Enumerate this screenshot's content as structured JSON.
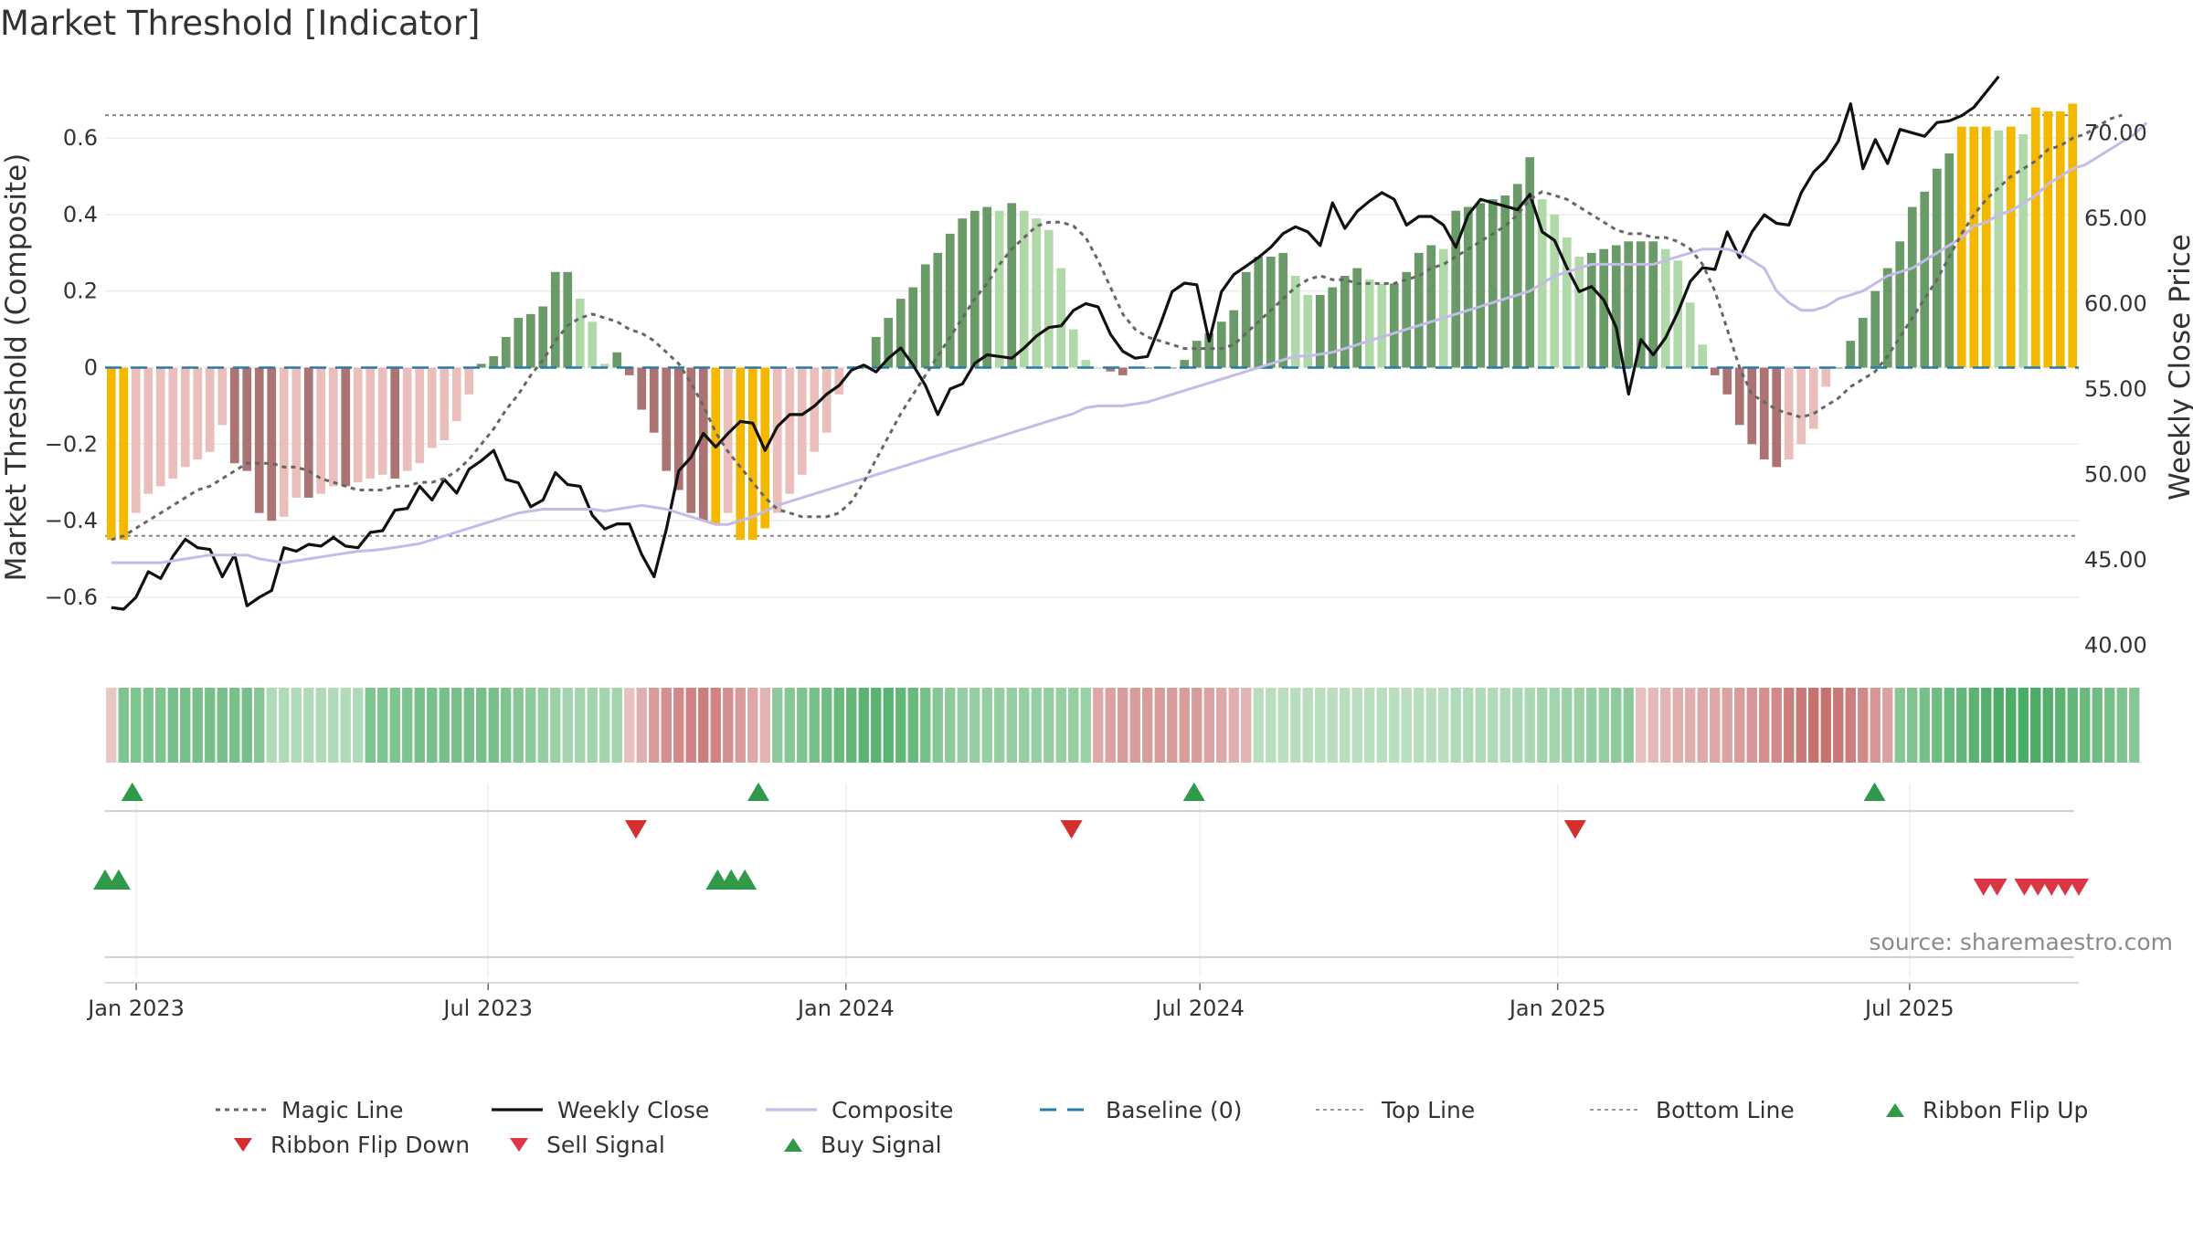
{
  "chart_data": {
    "type": "bar",
    "title": "Market Threshold [Indicator]",
    "ylabel_left": "Market Threshold (Composite)",
    "ylabel_right": "Weekly Close Price",
    "source": "source: sharemaestro.com",
    "x_ticks": [
      "Jan 2023",
      "Jul 2023",
      "Jan 2024",
      "Jul 2024",
      "Jan 2025",
      "Jul 2025"
    ],
    "x_range": [
      "2022-12-16",
      "2025-09-26"
    ],
    "y_left_ticks": [
      "−0.6",
      "−0.4",
      "−0.2",
      "0",
      "0.2",
      "0.4",
      "0.6"
    ],
    "y_left_range": [
      -0.77,
      0.77
    ],
    "y_right_ticks": [
      "40.00",
      "45.00",
      "50.00",
      "55.00",
      "60.00",
      "65.00",
      "70.00"
    ],
    "y_right_range": [
      39.0,
      73.5
    ],
    "top_line": 0.66,
    "bottom_line": -0.44,
    "baseline": 0,
    "histogram": [
      -0.45,
      -0.45,
      -0.38,
      -0.33,
      -0.31,
      -0.29,
      -0.26,
      -0.24,
      -0.22,
      -0.15,
      -0.25,
      -0.27,
      -0.38,
      -0.4,
      -0.39,
      -0.34,
      -0.34,
      -0.33,
      -0.31,
      -0.31,
      -0.3,
      -0.29,
      -0.28,
      -0.29,
      -0.27,
      -0.25,
      -0.21,
      -0.19,
      -0.14,
      -0.07,
      0.01,
      0.03,
      0.08,
      0.13,
      0.14,
      0.16,
      0.25,
      0.25,
      0.18,
      0.12,
      0.01,
      0.04,
      -0.02,
      -0.11,
      -0.17,
      -0.27,
      -0.32,
      -0.38,
      -0.4,
      -0.41,
      -0.38,
      -0.45,
      -0.45,
      -0.42,
      -0.38,
      -0.33,
      -0.28,
      -0.22,
      -0.17,
      -0.07,
      0.0,
      0.0,
      0.08,
      0.13,
      0.18,
      0.21,
      0.27,
      0.3,
      0.35,
      0.39,
      0.41,
      0.42,
      0.41,
      0.43,
      0.41,
      0.39,
      0.36,
      0.26,
      0.1,
      0.02,
      0.0,
      -0.01,
      -0.02,
      0.0,
      0.0,
      0.0,
      0.0,
      0.02,
      0.07,
      0.09,
      0.12,
      0.15,
      0.25,
      0.29,
      0.29,
      0.3,
      0.24,
      0.19,
      0.19,
      0.21,
      0.24,
      0.26,
      0.23,
      0.22,
      0.22,
      0.25,
      0.3,
      0.32,
      0.31,
      0.41,
      0.42,
      0.43,
      0.44,
      0.45,
      0.48,
      0.55,
      0.44,
      0.4,
      0.34,
      0.29,
      0.3,
      0.31,
      0.32,
      0.33,
      0.33,
      0.33,
      0.31,
      0.28,
      0.17,
      0.06,
      -0.02,
      -0.07,
      -0.15,
      -0.2,
      -0.24,
      -0.26,
      -0.24,
      -0.2,
      -0.16,
      -0.05,
      0.0,
      0.07,
      0.13,
      0.2,
      0.26,
      0.33,
      0.42,
      0.46,
      0.52,
      0.56,
      0.63,
      0.63,
      0.63,
      0.62,
      0.63,
      0.61,
      0.68,
      0.67,
      0.67,
      0.69
    ],
    "histogram_color_levels": {
      "gold": "#f5b800",
      "dark_green": "#6a9a68",
      "light_green": "#b0d8a8",
      "dark_red": "#ab7472",
      "light_red": "#eabfbb"
    },
    "series": [
      {
        "name": "Weekly Close",
        "color": "#111111",
        "values": [
          42.2,
          42.1,
          42.8,
          44.3,
          43.9,
          45.2,
          46.2,
          45.7,
          45.6,
          44.0,
          45.3,
          42.3,
          42.8,
          43.2,
          45.7,
          45.5,
          45.9,
          45.8,
          46.3,
          45.8,
          45.7,
          46.6,
          46.7,
          47.9,
          48.0,
          49.3,
          48.5,
          49.7,
          48.9,
          50.3,
          50.8,
          51.4,
          49.7,
          49.5,
          48.1,
          48.5,
          50.1,
          49.4,
          49.3,
          47.6,
          46.8,
          47.1,
          47.1,
          45.3,
          44.0,
          46.8,
          50.2,
          51.0,
          52.4,
          51.6,
          52.4,
          53.1,
          53.0,
          51.4,
          52.8,
          53.5,
          53.5,
          54.0,
          54.7,
          55.2,
          56.1,
          56.4,
          56.0,
          56.8,
          57.4,
          56.4,
          55.2,
          53.5,
          55.0,
          55.3,
          56.5,
          57.0,
          56.9,
          56.8,
          57.4,
          58.1,
          58.6,
          58.7,
          59.6,
          60.0,
          59.8,
          58.2,
          57.2,
          56.8,
          56.9,
          58.7,
          60.7,
          61.2,
          61.1,
          57.8,
          60.7,
          61.7,
          62.2,
          62.7,
          63.3,
          64.1,
          64.5,
          64.2,
          63.4,
          65.9,
          64.4,
          65.4,
          66.0,
          66.5,
          66.1,
          64.6,
          65.1,
          65.1,
          64.6,
          63.3,
          65.2,
          66.1,
          65.9,
          65.7,
          65.5,
          66.4,
          64.2,
          63.7,
          62.1,
          60.7,
          61.0,
          60.2,
          58.6,
          54.7,
          57.9,
          57.0,
          58.0,
          59.5,
          61.3,
          62.1,
          62.0,
          64.2,
          62.7,
          64.2,
          65.2,
          64.7,
          64.6,
          66.5,
          67.7,
          68.4,
          69.5,
          71.7,
          67.9,
          69.6,
          68.2,
          70.2,
          70.0,
          69.8,
          70.6,
          70.7,
          71.0,
          71.5,
          72.4,
          73.3
        ]
      },
      {
        "name": "Composite",
        "color": "#c4bbe8",
        "values": [
          -0.51,
          -0.51,
          -0.51,
          -0.51,
          -0.51,
          -0.505,
          -0.5,
          -0.495,
          -0.49,
          -0.49,
          -0.49,
          -0.49,
          -0.5,
          -0.505,
          -0.51,
          -0.505,
          -0.5,
          -0.495,
          -0.49,
          -0.485,
          -0.48,
          -0.478,
          -0.475,
          -0.47,
          -0.465,
          -0.46,
          -0.45,
          -0.44,
          -0.43,
          -0.42,
          -0.41,
          -0.4,
          -0.39,
          -0.38,
          -0.375,
          -0.37,
          -0.37,
          -0.37,
          -0.37,
          -0.37,
          -0.375,
          -0.37,
          -0.365,
          -0.36,
          -0.365,
          -0.37,
          -0.38,
          -0.39,
          -0.4,
          -0.41,
          -0.41,
          -0.4,
          -0.39,
          -0.375,
          -0.36,
          -0.35,
          -0.34,
          -0.33,
          -0.32,
          -0.31,
          -0.3,
          -0.29,
          -0.28,
          -0.27,
          -0.26,
          -0.25,
          -0.24,
          -0.23,
          -0.22,
          -0.21,
          -0.2,
          -0.19,
          -0.18,
          -0.17,
          -0.16,
          -0.15,
          -0.14,
          -0.13,
          -0.12,
          -0.105,
          -0.1,
          -0.1,
          -0.1,
          -0.095,
          -0.09,
          -0.08,
          -0.07,
          -0.06,
          -0.05,
          -0.04,
          -0.03,
          -0.02,
          -0.01,
          0.0,
          0.01,
          0.02,
          0.03,
          0.03,
          0.035,
          0.04,
          0.05,
          0.06,
          0.07,
          0.08,
          0.09,
          0.1,
          0.11,
          0.12,
          0.13,
          0.14,
          0.15,
          0.16,
          0.17,
          0.18,
          0.19,
          0.2,
          0.22,
          0.24,
          0.25,
          0.26,
          0.27,
          0.27,
          0.27,
          0.27,
          0.27,
          0.27,
          0.28,
          0.29,
          0.3,
          0.31,
          0.31,
          0.31,
          0.3,
          0.28,
          0.26,
          0.2,
          0.17,
          0.15,
          0.15,
          0.16,
          0.18,
          0.19,
          0.2,
          0.22,
          0.24,
          0.25,
          0.26,
          0.28,
          0.3,
          0.32,
          0.34,
          0.37,
          0.38,
          0.4,
          0.41,
          0.43,
          0.45,
          0.48,
          0.5,
          0.52,
          0.53,
          0.55,
          0.57,
          0.59,
          0.61,
          0.64
        ]
      },
      {
        "name": "Magic Line",
        "color": "#666666",
        "values": [
          -0.45,
          -0.44,
          -0.42,
          -0.4,
          -0.38,
          -0.36,
          -0.34,
          -0.32,
          -0.31,
          -0.29,
          -0.27,
          -0.25,
          -0.25,
          -0.25,
          -0.26,
          -0.26,
          -0.27,
          -0.29,
          -0.3,
          -0.31,
          -0.32,
          -0.32,
          -0.32,
          -0.31,
          -0.31,
          -0.3,
          -0.3,
          -0.29,
          -0.27,
          -0.24,
          -0.2,
          -0.16,
          -0.11,
          -0.07,
          -0.02,
          0.02,
          0.07,
          0.11,
          0.13,
          0.14,
          0.13,
          0.12,
          0.1,
          0.09,
          0.07,
          0.04,
          0.01,
          -0.04,
          -0.1,
          -0.17,
          -0.22,
          -0.26,
          -0.3,
          -0.34,
          -0.37,
          -0.38,
          -0.39,
          -0.39,
          -0.39,
          -0.38,
          -0.35,
          -0.3,
          -0.24,
          -0.18,
          -0.12,
          -0.07,
          -0.02,
          0.03,
          0.08,
          0.13,
          0.18,
          0.22,
          0.27,
          0.31,
          0.34,
          0.37,
          0.38,
          0.38,
          0.37,
          0.34,
          0.28,
          0.21,
          0.14,
          0.1,
          0.08,
          0.07,
          0.06,
          0.05,
          0.05,
          0.05,
          0.05,
          0.06,
          0.09,
          0.12,
          0.15,
          0.18,
          0.21,
          0.23,
          0.24,
          0.23,
          0.23,
          0.22,
          0.22,
          0.22,
          0.22,
          0.23,
          0.24,
          0.26,
          0.27,
          0.29,
          0.31,
          0.33,
          0.35,
          0.37,
          0.4,
          0.44,
          0.46,
          0.45,
          0.44,
          0.42,
          0.4,
          0.38,
          0.36,
          0.35,
          0.35,
          0.34,
          0.34,
          0.33,
          0.31,
          0.27,
          0.2,
          0.1,
          0.0,
          -0.07,
          -0.09,
          -0.11,
          -0.12,
          -0.13,
          -0.12,
          -0.1,
          -0.08,
          -0.05,
          -0.03,
          -0.01,
          0.03,
          0.08,
          0.13,
          0.18,
          0.23,
          0.29,
          0.35,
          0.4,
          0.44,
          0.47,
          0.5,
          0.52,
          0.54,
          0.57,
          0.58,
          0.6,
          0.61,
          0.63,
          0.65,
          0.66
        ]
      }
    ],
    "ribbon": [
      0.1,
      0.5,
      0.5,
      0.5,
      0.5,
      0.5,
      0.5,
      0.5,
      0.5,
      0.5,
      0.5,
      0.5,
      0.5,
      0.2,
      0.2,
      0.2,
      0.2,
      0.2,
      0.2,
      0.2,
      0.2,
      0.5,
      0.5,
      0.5,
      0.5,
      0.5,
      0.5,
      0.5,
      0.5,
      0.5,
      0.5,
      0.5,
      0.5,
      0.5,
      0.5,
      0.5,
      0.5,
      0.5,
      0.5,
      0.5,
      0.5,
      0.5,
      0.5,
      0.5,
      0.5,
      0.5,
      0.5,
      0.5,
      0.5,
      0.5,
      0.5,
      0.5,
      0.5,
      0.5,
      0.5,
      0.5,
      0.5,
      0.5,
      0.5,
      0.5,
      0.5,
      0.5,
      0.5,
      0.5,
      0.5,
      0.5,
      0.5,
      0.5,
      0.5,
      0.5,
      0.5,
      0.5,
      0.5,
      0.5,
      0.5,
      0.5,
      0.5,
      0.5,
      0.5,
      0.5,
      0.5,
      0.5,
      0.5,
      0.5,
      0.5,
      0.5,
      0.5,
      0.5,
      0.5,
      0.5,
      0.5,
      0.5,
      0.5,
      0.5,
      0.5,
      0.5,
      0.5,
      0.5,
      0.5,
      0.5,
      0.5,
      0.5,
      0.5,
      0.5,
      0.5,
      0.5,
      0.5,
      0.5,
      0.5,
      0.5,
      0.5,
      0.5,
      0.5,
      0.5,
      0.5,
      0.5,
      0.5,
      0.5,
      0.5,
      0.5,
      0.5,
      0.5,
      0.5,
      0.5,
      0.5,
      0.5,
      0.5,
      0.5,
      0.5,
      0.5,
      0.5,
      0.5,
      0.5,
      0.5,
      0.5,
      0.5,
      0.5,
      0.5,
      0.5,
      0.5,
      0.5,
      0.5,
      0.5,
      0.5,
      0.5,
      0.5,
      0.5,
      0.5,
      0.5,
      0.5,
      0.5,
      0.5,
      0.5,
      0.5,
      0.5,
      0.5,
      0.5,
      0.5,
      0.5,
      0.5,
      0.5,
      0.5,
      0.5,
      0.5,
      0.5,
      0.5,
      0.5
    ],
    "ribbon_signed": [
      -0.1,
      0.55,
      0.55,
      0.55,
      0.55,
      0.6,
      0.6,
      0.6,
      0.6,
      0.6,
      0.6,
      0.6,
      0.5,
      0.2,
      0.2,
      0.2,
      0.2,
      0.2,
      0.2,
      0.2,
      0.2,
      0.55,
      0.55,
      0.55,
      0.55,
      0.6,
      0.6,
      0.6,
      0.6,
      0.6,
      0.6,
      0.6,
      0.55,
      0.5,
      0.45,
      0.4,
      0.35,
      0.3,
      0.3,
      0.3,
      0.3,
      0.3,
      -0.15,
      -0.3,
      -0.45,
      -0.55,
      -0.6,
      -0.65,
      -0.7,
      -0.65,
      -0.55,
      -0.45,
      -0.35,
      -0.25,
      0.45,
      0.5,
      0.55,
      0.6,
      0.65,
      0.7,
      0.75,
      0.8,
      0.8,
      0.8,
      0.75,
      0.7,
      0.6,
      0.5,
      0.45,
      0.4,
      0.4,
      0.4,
      0.4,
      0.4,
      0.4,
      0.4,
      0.4,
      0.4,
      0.4,
      0.35,
      -0.35,
      -0.4,
      -0.45,
      -0.45,
      -0.45,
      -0.45,
      -0.45,
      -0.45,
      -0.45,
      -0.4,
      -0.35,
      -0.3,
      -0.25,
      0.15,
      0.15,
      0.15,
      0.15,
      0.15,
      0.15,
      0.15,
      0.15,
      0.15,
      0.15,
      0.15,
      0.15,
      0.15,
      0.15,
      0.15,
      0.15,
      0.2,
      0.2,
      0.2,
      0.2,
      0.2,
      0.25,
      0.25,
      0.3,
      0.3,
      0.35,
      0.35,
      0.4,
      0.4,
      0.45,
      0.45,
      -0.15,
      -0.2,
      -0.25,
      -0.3,
      -0.3,
      -0.35,
      -0.35,
      -0.4,
      -0.45,
      -0.5,
      -0.55,
      -0.6,
      -0.7,
      -0.75,
      -0.8,
      -0.8,
      -0.75,
      -0.7,
      -0.6,
      -0.5,
      -0.4,
      0.5,
      0.55,
      0.6,
      0.65,
      0.7,
      0.75,
      0.8,
      0.85,
      0.9,
      0.9,
      0.9,
      0.9,
      0.85,
      0.8,
      0.75,
      0.7,
      0.65,
      0.6,
      0.55,
      0.5
    ],
    "ribbon_flips": {
      "up": [
        "2022-12-30",
        "2023-11-17",
        "2024-06-28",
        "2025-06-13"
      ],
      "down": [
        "2023-09-15",
        "2024-04-26",
        "2025-01-10"
      ]
    },
    "signals": {
      "buy": [
        "2022-12-16",
        "2022-12-23",
        "2023-10-27",
        "2023-11-03",
        "2023-11-10"
      ],
      "sell": [
        "2025-08-08",
        "2025-08-15",
        "2025-08-29",
        "2025-09-05",
        "2025-09-12",
        "2025-09-19",
        "2025-09-26"
      ]
    },
    "legend": [
      {
        "name": "Magic Line",
        "color": "#666666",
        "style": "dotted"
      },
      {
        "name": "Weekly Close",
        "color": "#111111",
        "style": "solid"
      },
      {
        "name": "Composite",
        "color": "#c4bbe8",
        "style": "solid"
      },
      {
        "name": "Baseline (0)",
        "color": "#2878a8",
        "style": "dashed"
      },
      {
        "name": "Top Line",
        "color": "#999999",
        "style": "dotted-thin"
      },
      {
        "name": "Bottom Line",
        "color": "#999999",
        "style": "dotted-thin"
      },
      {
        "name": "Ribbon Flip Up",
        "color": "#2e9a4a",
        "style": "triangle-up"
      },
      {
        "name": "Ribbon Flip Down",
        "color": "#d22f2f",
        "style": "triangle-down"
      },
      {
        "name": "Sell Signal",
        "color": "#dc3545",
        "style": "triangle-down"
      },
      {
        "name": "Buy Signal",
        "color": "#2e9a4a",
        "style": "triangle-up"
      }
    ]
  }
}
